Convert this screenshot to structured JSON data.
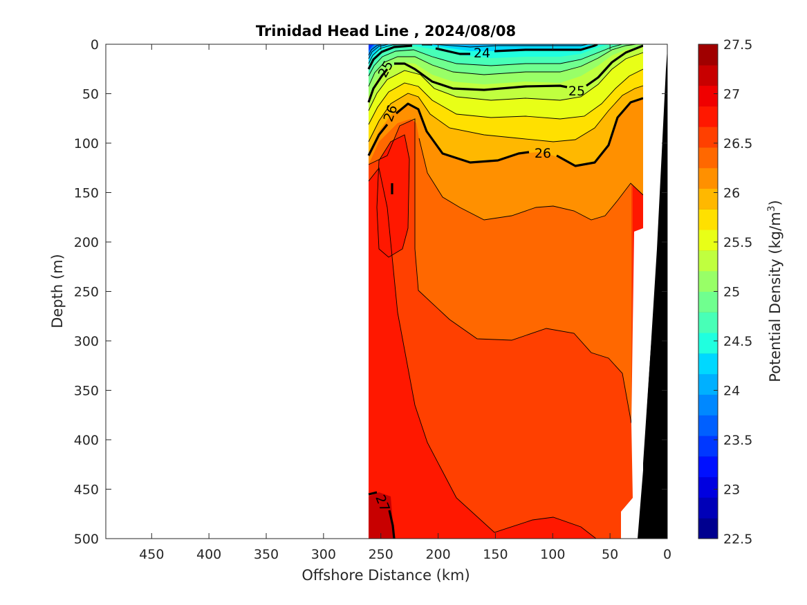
{
  "chart_data": {
    "type": "contour",
    "title": "Trinidad Head Line , 2024/08/08",
    "xlabel": "Offshore Distance (km)",
    "ylabel": "Depth (m)",
    "xlim": [
      490,
      0
    ],
    "ylim": [
      0,
      500
    ],
    "x_reversed": true,
    "y_reversed": true,
    "xticks": [
      450,
      400,
      350,
      300,
      250,
      200,
      150,
      100,
      50,
      0
    ],
    "yticks": [
      0,
      50,
      100,
      150,
      200,
      250,
      300,
      350,
      400,
      450,
      500
    ],
    "data_extent_km": [
      260,
      20
    ],
    "colorbar": {
      "label": "Potential Density (kg/m",
      "label_sup": "3",
      "label_end": ")",
      "range": [
        22.5,
        27.5
      ],
      "step": 0.25,
      "ticks": [
        "27.5",
        "27",
        "26.5",
        "26",
        "25.5",
        "25",
        "24.5",
        "24",
        "23.5",
        "23",
        "22.5"
      ],
      "colors": [
        "#00008f",
        "#0000b8",
        "#0000e0",
        "#0010ff",
        "#0038ff",
        "#0060ff",
        "#0088ff",
        "#00b0ff",
        "#00d8ff",
        "#20ffdf",
        "#48ffb7",
        "#70ff8f",
        "#98ff67",
        "#c0ff3f",
        "#e8ff17",
        "#ffe000",
        "#ffb800",
        "#ff9000",
        "#ff6800",
        "#ff4000",
        "#ff1800",
        "#f00000",
        "#c80000",
        "#a00000"
      ]
    },
    "contour_labels": [
      "24",
      "25",
      "26",
      "25",
      "26",
      "27"
    ],
    "bathymetry_color": "#000000"
  }
}
